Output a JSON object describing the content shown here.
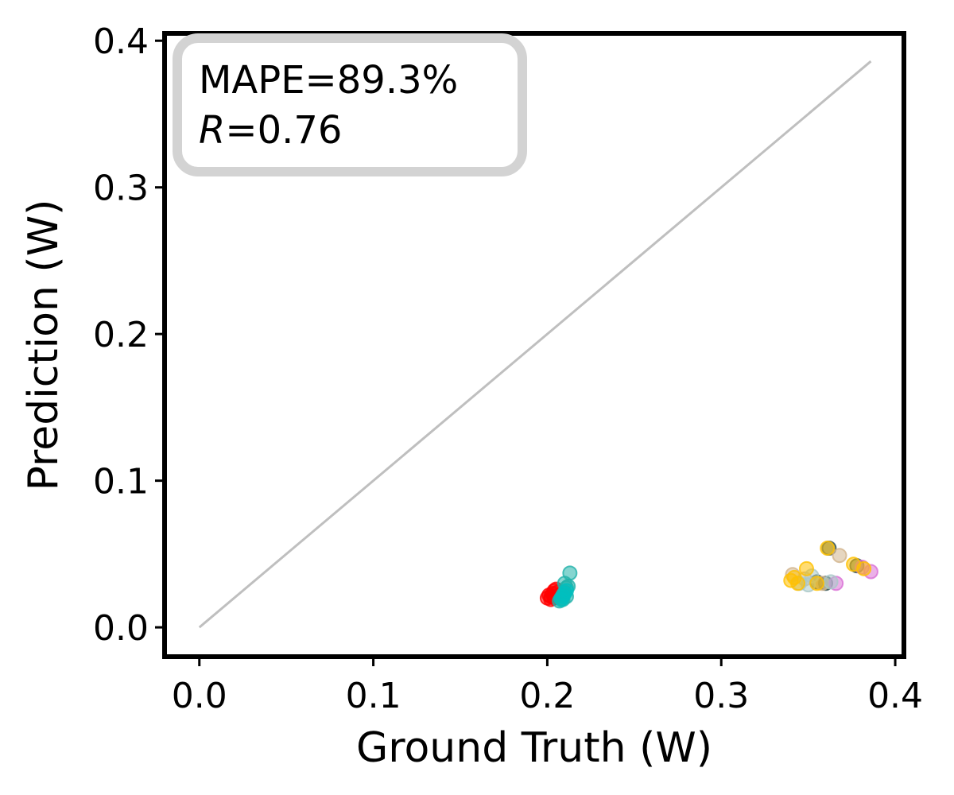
{
  "chart_data": {
    "type": "scatter",
    "title": "",
    "xlabel": "Ground Truth (W)",
    "ylabel": "Prediction (W)",
    "xlim": [
      -0.02,
      0.405
    ],
    "ylim": [
      -0.02,
      0.405
    ],
    "xticks": [
      0.0,
      0.1,
      0.2,
      0.3,
      0.4
    ],
    "yticks": [
      0.0,
      0.1,
      0.2,
      0.3,
      0.4
    ],
    "xtick_labels": [
      "0.0",
      "0.1",
      "0.2",
      "0.3",
      "0.4"
    ],
    "ytick_labels": [
      "0.0",
      "0.1",
      "0.2",
      "0.3",
      "0.4"
    ],
    "grid": false,
    "reference_line": {
      "x": [
        0.0,
        0.386
      ],
      "y": [
        0.0,
        0.386
      ],
      "color": "#bfbfbf"
    },
    "annotation": {
      "line1": "MAPE=89.3%",
      "r_symbol": "R",
      "r_value": "=0.76",
      "location": "top-left"
    },
    "series": [
      {
        "color": "#ff0000",
        "points": [
          [
            0.2,
            0.02
          ],
          [
            0.201,
            0.022
          ],
          [
            0.202,
            0.021
          ],
          [
            0.203,
            0.023
          ],
          [
            0.204,
            0.025
          ],
          [
            0.205,
            0.026
          ],
          [
            0.206,
            0.024
          ],
          [
            0.207,
            0.022
          ],
          [
            0.202,
            0.019
          ],
          [
            0.204,
            0.02
          ]
        ]
      },
      {
        "color": "#20b2aa",
        "points": [
          [
            0.207,
            0.018
          ],
          [
            0.208,
            0.02
          ],
          [
            0.209,
            0.022
          ],
          [
            0.21,
            0.024
          ],
          [
            0.211,
            0.027
          ],
          [
            0.212,
            0.028
          ],
          [
            0.21,
            0.03
          ],
          [
            0.213,
            0.037
          ],
          [
            0.211,
            0.021
          ],
          [
            0.209,
            0.019
          ]
        ]
      },
      {
        "color": "#00bfbf",
        "points": [
          [
            0.208,
            0.019
          ],
          [
            0.209,
            0.021
          ],
          [
            0.21,
            0.023
          ],
          [
            0.211,
            0.025
          ]
        ]
      },
      {
        "color": "#2f4f4f",
        "points": [
          [
            0.362,
            0.054
          ],
          [
            0.378,
            0.042
          ],
          [
            0.36,
            0.03
          ],
          [
            0.355,
            0.031
          ]
        ]
      },
      {
        "color": "#d2b48c",
        "points": [
          [
            0.341,
            0.036
          ],
          [
            0.348,
            0.033
          ],
          [
            0.358,
            0.03
          ],
          [
            0.368,
            0.049
          ]
        ]
      },
      {
        "color": "#da70d6",
        "points": [
          [
            0.386,
            0.038
          ],
          [
            0.366,
            0.03
          ],
          [
            0.381,
            0.041
          ]
        ]
      },
      {
        "color": "#a9c8c8",
        "points": [
          [
            0.345,
            0.03
          ],
          [
            0.35,
            0.029
          ],
          [
            0.352,
            0.035
          ],
          [
            0.363,
            0.031
          ]
        ]
      },
      {
        "color": "#ffc000",
        "points": [
          [
            0.34,
            0.032
          ],
          [
            0.342,
            0.034
          ],
          [
            0.344,
            0.03
          ],
          [
            0.349,
            0.04
          ],
          [
            0.355,
            0.03
          ],
          [
            0.361,
            0.054
          ],
          [
            0.376,
            0.043
          ],
          [
            0.382,
            0.04
          ]
        ]
      }
    ]
  }
}
